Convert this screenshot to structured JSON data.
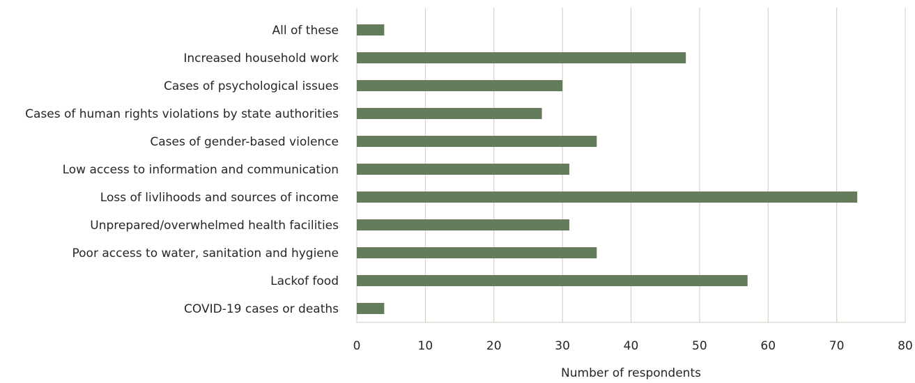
{
  "chart_data": {
    "type": "bar",
    "orientation": "horizontal",
    "title": "",
    "xlabel": "Number of respondents",
    "ylabel": "",
    "xlim": [
      0,
      80
    ],
    "xticks": [
      0,
      10,
      20,
      30,
      40,
      50,
      60,
      70,
      80
    ],
    "grid": "vertical",
    "legend": "none",
    "bar_color": "#647c5c",
    "grid_color": "#cfcbbf",
    "categories": [
      "All of these",
      "Increased household work",
      "Cases of psychological issues",
      "Cases of human rights violations by state authorities",
      "Cases of gender-based violence",
      "Low access to information and communication",
      "Loss of livlihoods and sources of income",
      "Unprepared/overwhelmed health facilities",
      "Poor access to water, sanitation and hygiene",
      "Lackof food",
      "COVID-19 cases or deaths"
    ],
    "values": [
      4,
      48,
      30,
      27,
      35,
      31,
      73,
      31,
      35,
      57,
      4
    ]
  }
}
